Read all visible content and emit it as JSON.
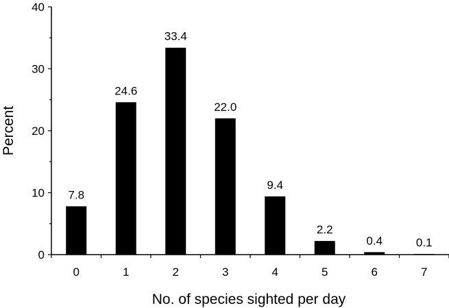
{
  "chart_data": {
    "type": "bar",
    "categories": [
      "0",
      "1",
      "2",
      "3",
      "4",
      "5",
      "6",
      "7"
    ],
    "values": [
      7.8,
      24.6,
      33.4,
      22.0,
      9.4,
      2.2,
      0.4,
      0.1
    ],
    "data_labels": [
      "7.8",
      "24.6",
      "33.4",
      "22.0",
      "9.4",
      "2.2",
      "0.4",
      "0.1"
    ],
    "title": "",
    "xlabel": "No. of species sighted per day",
    "ylabel": "Percent",
    "ylim": [
      0,
      40
    ],
    "yticks": [
      0,
      10,
      20,
      30,
      40
    ],
    "yminor_step": 5,
    "grid": false,
    "legend": "none",
    "bar_color": "#000000"
  }
}
